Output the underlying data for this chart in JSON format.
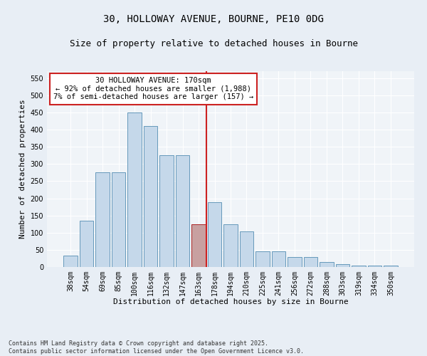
{
  "title_line1": "30, HOLLOWAY AVENUE, BOURNE, PE10 0DG",
  "title_line2": "Size of property relative to detached houses in Bourne",
  "xlabel": "Distribution of detached houses by size in Bourne",
  "ylabel": "Number of detached properties",
  "categories": [
    "38sqm",
    "54sqm",
    "69sqm",
    "85sqm",
    "100sqm",
    "116sqm",
    "132sqm",
    "147sqm",
    "163sqm",
    "178sqm",
    "194sqm",
    "210sqm",
    "225sqm",
    "241sqm",
    "256sqm",
    "272sqm",
    "288sqm",
    "303sqm",
    "319sqm",
    "334sqm",
    "350sqm"
  ],
  "values": [
    33,
    135,
    275,
    275,
    450,
    410,
    325,
    325,
    125,
    188,
    125,
    103,
    46,
    45,
    30,
    30,
    14,
    9,
    5,
    5,
    5
  ],
  "bar_color": "#c5d8ea",
  "bar_edge_color": "#6699bb",
  "highlight_bar_color": "#c8a0a0",
  "highlight_bar_edge_color": "#aa2222",
  "highlight_index": 8,
  "vline_color": "#cc2222",
  "annotation_text": "30 HOLLOWAY AVENUE: 170sqm\n← 92% of detached houses are smaller (1,988)\n7% of semi-detached houses are larger (157) →",
  "annotation_box_facecolor": "#ffffff",
  "annotation_box_edgecolor": "#cc2222",
  "ylim_max": 570,
  "yticks": [
    0,
    50,
    100,
    150,
    200,
    250,
    300,
    350,
    400,
    450,
    500,
    550
  ],
  "footnote": "Contains HM Land Registry data © Crown copyright and database right 2025.\nContains public sector information licensed under the Open Government Licence v3.0.",
  "fig_facecolor": "#e8eef5",
  "ax_facecolor": "#f0f4f8",
  "grid_color": "#ffffff",
  "title_fontsize": 10,
  "subtitle_fontsize": 9,
  "axis_label_fontsize": 8,
  "tick_fontsize": 7,
  "annot_fontsize": 7.5,
  "footnote_fontsize": 6
}
